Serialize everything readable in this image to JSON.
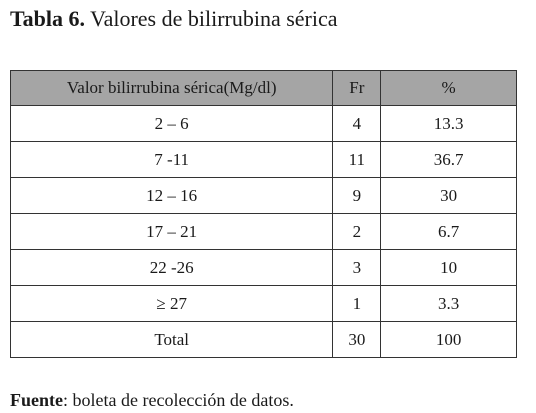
{
  "title": {
    "label": "Tabla 6.",
    "text": "Valores de bilirrubina sérica"
  },
  "table": {
    "header": [
      "Valor bilirrubina sérica(Mg/dl)",
      "Fr",
      "%"
    ],
    "rows": [
      [
        "2 – 6",
        "4",
        "13.3"
      ],
      [
        "7 -11",
        "11",
        "36.7"
      ],
      [
        "12 – 16",
        "9",
        "30"
      ],
      [
        "17 – 21",
        "2",
        "6.7"
      ],
      [
        "22 -26",
        "3",
        "10"
      ],
      [
        "≥ 27",
        "1",
        "3.3"
      ],
      [
        "Total",
        "30",
        "100"
      ]
    ]
  },
  "source": {
    "label": "Fuente",
    "text": ": boleta de recolección de datos."
  }
}
